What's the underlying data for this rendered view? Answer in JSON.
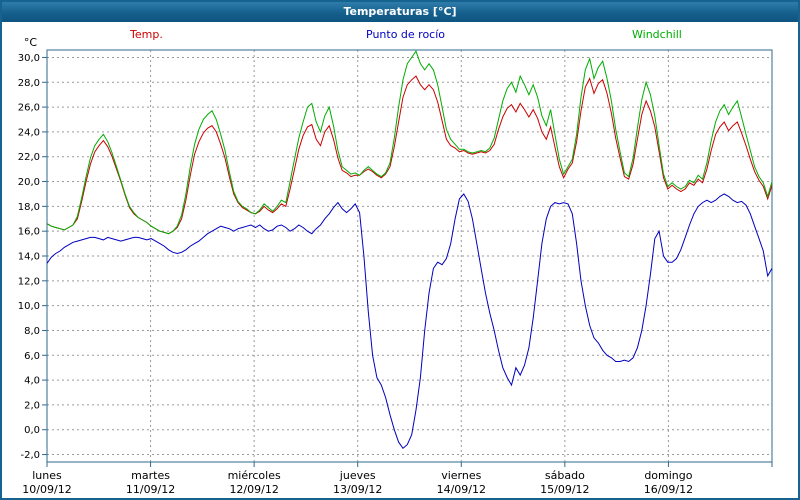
{
  "window": {
    "title": "Temperaturas [°C]"
  },
  "legend": [
    {
      "label": "Temp.",
      "color": "#cc0000"
    },
    {
      "label": "Punto de rocío",
      "color": "#0000c0"
    },
    {
      "label": "Windchill",
      "color": "#00ad00"
    }
  ],
  "chart_data": {
    "type": "line",
    "title": "Temperaturas [°C]",
    "ylabel": "°C",
    "ylim": [
      -2,
      30
    ],
    "ytick_step": 2,
    "ytick_labels": [
      "30,0",
      "28,0",
      "26,0",
      "24,0",
      "22,0",
      "20,0",
      "18,0",
      "16,0",
      "14,0",
      "12,0",
      "10,0",
      "8,0",
      "6,0",
      "4,0",
      "2,0",
      "0,0",
      "-2,0"
    ],
    "grid": "dashed",
    "frame_color": "#2d6a8e",
    "grid_color": "#9a9a9a",
    "x_days": [
      {
        "name": "lunes",
        "date": "10/09/12"
      },
      {
        "name": "martes",
        "date": "11/09/12"
      },
      {
        "name": "miércoles",
        "date": "12/09/12"
      },
      {
        "name": "jueves",
        "date": "13/09/12"
      },
      {
        "name": "viernes",
        "date": "14/09/12"
      },
      {
        "name": "sábado",
        "date": "15/09/12"
      },
      {
        "name": "domingo",
        "date": "16/09/12"
      }
    ],
    "points_per_day": 24,
    "series": [
      {
        "name": "Temp.",
        "color": "#cc0000",
        "values": [
          16.6,
          16.4,
          16.3,
          16.2,
          16.1,
          16.3,
          16.5,
          17.0,
          18.4,
          20.0,
          21.4,
          22.4,
          22.9,
          23.3,
          22.8,
          22.0,
          21.0,
          20.0,
          18.9,
          17.9,
          17.4,
          17.1,
          16.9,
          16.7,
          16.4,
          16.2,
          16.0,
          15.9,
          15.8,
          16.0,
          16.3,
          17.0,
          18.5,
          20.5,
          22.2,
          23.2,
          23.9,
          24.3,
          24.5,
          24.0,
          23.0,
          21.9,
          20.4,
          19.0,
          18.3,
          17.9,
          17.7,
          17.5,
          17.4,
          17.6,
          18.0,
          17.7,
          17.5,
          17.8,
          18.2,
          18.0,
          19.4,
          21.0,
          22.6,
          23.7,
          24.4,
          24.6,
          23.4,
          22.9,
          24.0,
          24.5,
          23.4,
          21.9,
          20.9,
          20.7,
          20.4,
          20.5,
          20.5,
          20.8,
          21.0,
          20.8,
          20.5,
          20.3,
          20.6,
          21.2,
          22.8,
          24.8,
          26.8,
          27.8,
          28.2,
          28.5,
          27.8,
          27.4,
          27.8,
          27.4,
          26.4,
          24.9,
          23.4,
          22.9,
          22.7,
          22.4,
          22.5,
          22.3,
          22.2,
          22.3,
          22.4,
          22.3,
          22.5,
          23.0,
          24.2,
          25.2,
          25.9,
          26.2,
          25.6,
          26.3,
          25.8,
          25.2,
          25.8,
          25.1,
          24.0,
          23.4,
          24.4,
          22.8,
          21.2,
          20.3,
          21.0,
          21.5,
          23.2,
          25.7,
          27.6,
          28.3,
          27.1,
          27.9,
          28.2,
          27.1,
          25.5,
          23.5,
          21.9,
          20.4,
          20.2,
          21.4,
          23.4,
          25.4,
          26.5,
          25.7,
          24.4,
          22.4,
          20.3,
          19.4,
          19.7,
          19.4,
          19.2,
          19.4,
          19.9,
          19.7,
          20.2,
          19.9,
          21.0,
          22.5,
          23.8,
          24.4,
          24.8,
          24.1,
          24.5,
          24.8,
          23.9,
          22.9,
          21.8,
          20.8,
          20.1,
          19.6,
          18.6,
          19.7
        ]
      },
      {
        "name": "Punto de rocío",
        "color": "#0000c0",
        "values": [
          13.4,
          13.9,
          14.2,
          14.4,
          14.7,
          14.9,
          15.1,
          15.2,
          15.3,
          15.4,
          15.5,
          15.5,
          15.4,
          15.3,
          15.5,
          15.4,
          15.3,
          15.2,
          15.3,
          15.4,
          15.5,
          15.5,
          15.4,
          15.3,
          15.4,
          15.2,
          15.0,
          14.8,
          14.5,
          14.3,
          14.2,
          14.3,
          14.5,
          14.8,
          15.0,
          15.2,
          15.5,
          15.8,
          16.0,
          16.2,
          16.4,
          16.3,
          16.2,
          16.0,
          16.2,
          16.3,
          16.4,
          16.5,
          16.3,
          16.5,
          16.2,
          16.0,
          16.1,
          16.4,
          16.5,
          16.3,
          16.0,
          16.2,
          16.5,
          16.3,
          16.0,
          15.8,
          16.2,
          16.5,
          17.0,
          17.4,
          17.9,
          18.3,
          17.8,
          17.5,
          17.8,
          18.2,
          17.5,
          14.0,
          9.5,
          6.0,
          4.2,
          3.6,
          2.6,
          1.2,
          0.0,
          -1.0,
          -1.5,
          -1.2,
          -0.4,
          1.6,
          4.2,
          8.0,
          11.0,
          13.0,
          13.5,
          13.3,
          13.8,
          15.0,
          17.0,
          18.6,
          19.0,
          18.4,
          17.0,
          15.0,
          13.0,
          11.0,
          9.4,
          8.0,
          6.4,
          5.0,
          4.2,
          3.6,
          5.0,
          4.4,
          5.2,
          6.6,
          9.0,
          12.0,
          15.0,
          17.0,
          18.0,
          18.3,
          18.2,
          18.3,
          18.2,
          17.4,
          15.0,
          12.0,
          10.0,
          8.4,
          7.4,
          7.0,
          6.4,
          6.0,
          5.8,
          5.5,
          5.5,
          5.6,
          5.5,
          5.8,
          6.6,
          8.0,
          10.0,
          12.5,
          15.4,
          16.0,
          14.0,
          13.5,
          13.5,
          13.8,
          14.5,
          15.5,
          16.5,
          17.4,
          18.0,
          18.3,
          18.5,
          18.3,
          18.5,
          18.8,
          19.0,
          18.8,
          18.5,
          18.3,
          18.4,
          18.1,
          17.4,
          16.4,
          15.4,
          14.4,
          12.4,
          13.0
        ]
      },
      {
        "name": "Windchill",
        "color": "#00ad00",
        "values": [
          16.6,
          16.4,
          16.3,
          16.2,
          16.1,
          16.3,
          16.5,
          17.2,
          18.7,
          20.4,
          21.9,
          22.9,
          23.4,
          23.8,
          23.2,
          22.3,
          21.2,
          20.1,
          19.0,
          18.0,
          17.5,
          17.1,
          16.9,
          16.7,
          16.4,
          16.2,
          16.0,
          15.9,
          15.8,
          16.0,
          16.4,
          17.3,
          19.0,
          21.2,
          23.0,
          24.2,
          25.0,
          25.4,
          25.7,
          25.0,
          23.8,
          22.5,
          20.8,
          19.2,
          18.4,
          18.0,
          17.8,
          17.5,
          17.4,
          17.7,
          18.2,
          17.9,
          17.6,
          18.0,
          18.5,
          18.3,
          20.0,
          21.8,
          23.5,
          24.8,
          26.0,
          26.3,
          24.8,
          24.0,
          25.3,
          26.0,
          24.5,
          22.5,
          21.2,
          20.9,
          20.6,
          20.7,
          20.5,
          20.9,
          21.2,
          20.9,
          20.6,
          20.4,
          20.7,
          21.5,
          23.5,
          26.0,
          28.2,
          29.5,
          30.0,
          30.5,
          29.5,
          29.0,
          29.5,
          29.0,
          27.8,
          26.0,
          24.2,
          23.4,
          23.0,
          22.6,
          22.6,
          22.4,
          22.3,
          22.4,
          22.5,
          22.4,
          22.7,
          23.5,
          25.0,
          26.5,
          27.5,
          28.0,
          27.2,
          28.5,
          27.8,
          27.0,
          27.8,
          26.8,
          25.3,
          24.5,
          25.8,
          23.8,
          21.8,
          20.6,
          21.2,
          21.8,
          23.8,
          26.8,
          29.0,
          29.9,
          28.3,
          29.2,
          29.7,
          28.3,
          26.5,
          24.2,
          22.4,
          20.7,
          20.4,
          21.9,
          24.3,
          26.6,
          28.0,
          27.0,
          25.3,
          22.9,
          20.6,
          19.6,
          19.9,
          19.6,
          19.4,
          19.6,
          20.1,
          19.9,
          20.5,
          20.2,
          21.5,
          23.3,
          24.8,
          25.7,
          26.2,
          25.4,
          26.0,
          26.5,
          25.2,
          23.8,
          22.5,
          21.2,
          20.4,
          19.9,
          18.8,
          20.0
        ]
      }
    ]
  }
}
